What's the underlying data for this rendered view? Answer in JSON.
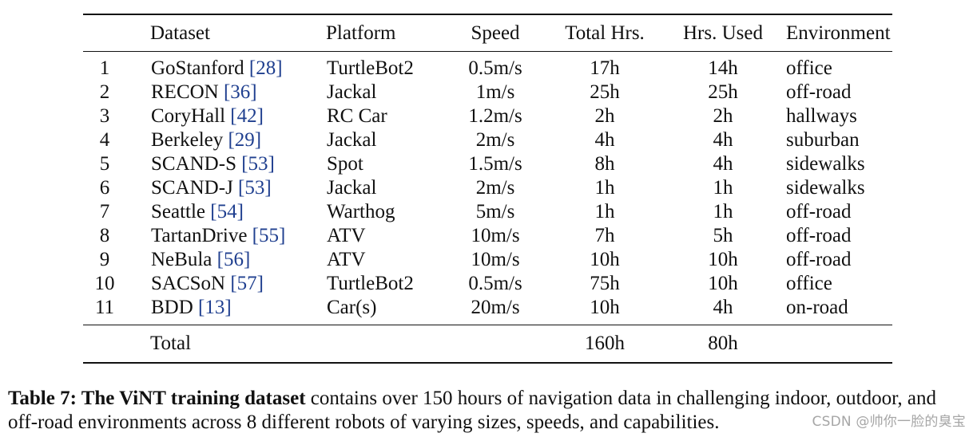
{
  "table": {
    "headers": {
      "num": "",
      "dataset": "Dataset",
      "platform": "Platform",
      "speed": "Speed",
      "total_hrs": "Total Hrs.",
      "hrs_used": "Hrs. Used",
      "environment": "Environment"
    },
    "rows": [
      {
        "num": "1",
        "dataset": "GoStanford",
        "cite": "[28]",
        "platform": "TurtleBot2",
        "speed": "0.5m/s",
        "total_hrs": "17h",
        "hrs_used": "14h",
        "environment": "office"
      },
      {
        "num": "2",
        "dataset": "RECON",
        "cite": "[36]",
        "platform": "Jackal",
        "speed": "1m/s",
        "total_hrs": "25h",
        "hrs_used": "25h",
        "environment": "off-road"
      },
      {
        "num": "3",
        "dataset": "CoryHall",
        "cite": "[42]",
        "platform": "RC Car",
        "speed": "1.2m/s",
        "total_hrs": "2h",
        "hrs_used": "2h",
        "environment": "hallways"
      },
      {
        "num": "4",
        "dataset": "Berkeley",
        "cite": "[29]",
        "platform": "Jackal",
        "speed": "2m/s",
        "total_hrs": "4h",
        "hrs_used": "4h",
        "environment": "suburban"
      },
      {
        "num": "5",
        "dataset": "SCAND-S",
        "cite": "[53]",
        "platform": "Spot",
        "speed": "1.5m/s",
        "total_hrs": "8h",
        "hrs_used": "4h",
        "environment": "sidewalks"
      },
      {
        "num": "6",
        "dataset": "SCAND-J",
        "cite": "[53]",
        "platform": "Jackal",
        "speed": "2m/s",
        "total_hrs": "1h",
        "hrs_used": "1h",
        "environment": "sidewalks"
      },
      {
        "num": "7",
        "dataset": "Seattle",
        "cite": "[54]",
        "platform": "Warthog",
        "speed": "5m/s",
        "total_hrs": "1h",
        "hrs_used": "1h",
        "environment": "off-road"
      },
      {
        "num": "8",
        "dataset": "TartanDrive",
        "cite": "[55]",
        "platform": "ATV",
        "speed": "10m/s",
        "total_hrs": "7h",
        "hrs_used": "5h",
        "environment": "off-road"
      },
      {
        "num": "9",
        "dataset": "NeBula",
        "cite": "[56]",
        "platform": "ATV",
        "speed": "10m/s",
        "total_hrs": "10h",
        "hrs_used": "10h",
        "environment": "off-road"
      },
      {
        "num": "10",
        "dataset": "SACSoN",
        "cite": "[57]",
        "platform": "TurtleBot2",
        "speed": "0.5m/s",
        "total_hrs": "75h",
        "hrs_used": "10h",
        "environment": "office"
      },
      {
        "num": "11",
        "dataset": "BDD",
        "cite": "[13]",
        "platform": "Car(s)",
        "speed": "20m/s",
        "total_hrs": "10h",
        "hrs_used": "4h",
        "environment": "on-road"
      }
    ],
    "total": {
      "label": "Total",
      "total_hrs": "160h",
      "hrs_used": "80h"
    }
  },
  "caption": {
    "bold": "Table 7: The ViNT training dataset",
    "text": " contains over 150 hours of navigation data in challenging indoor, outdoor, and off-road environments across 8 different robots of varying sizes, speeds, and capabilities."
  },
  "watermark": "CSDN @帅你一脸的臭宝",
  "colors": {
    "citation": "#1f3f8f",
    "text": "#111111",
    "watermark": "#969696"
  }
}
